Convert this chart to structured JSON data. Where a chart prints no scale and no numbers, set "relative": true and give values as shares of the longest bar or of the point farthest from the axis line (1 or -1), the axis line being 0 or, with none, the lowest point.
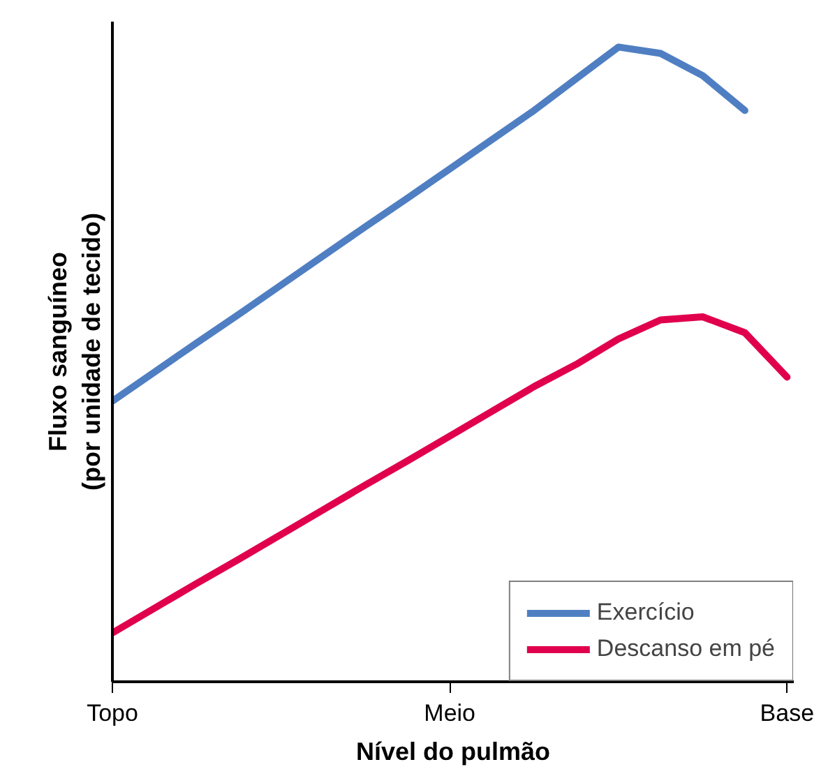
{
  "chart_data": {
    "type": "line",
    "relative": true,
    "xlabel": "Nível do pulmão",
    "ylabel": "Fluxo sanguíneo\n(por unidade de tecido)",
    "categories": [
      "Topo",
      null,
      null,
      null,
      null,
      null,
      null,
      null,
      "Meio",
      null,
      null,
      null,
      null,
      null,
      null,
      null,
      "Base"
    ],
    "series": [
      {
        "name": "Exercício",
        "color": "#4f7fc2",
        "values": [
          0.442,
          0.488,
          0.534,
          0.579,
          0.625,
          0.671,
          0.717,
          0.762,
          0.808,
          0.854,
          0.9,
          0.95,
          1,
          0.99,
          0.955,
          0.9,
          null
        ]
      },
      {
        "name": "Descanso em pé",
        "color": "#e0004d",
        "values": [
          0.077,
          0.116,
          0.155,
          0.193,
          0.232,
          0.271,
          0.31,
          0.348,
          0.387,
          0.426,
          0.465,
          0.5,
          0.54,
          0.57,
          0.575,
          0.55,
          0.48
        ]
      }
    ],
    "legend": "bottom right",
    "marker": "none",
    "line_style": "solid",
    "grid": false
  }
}
